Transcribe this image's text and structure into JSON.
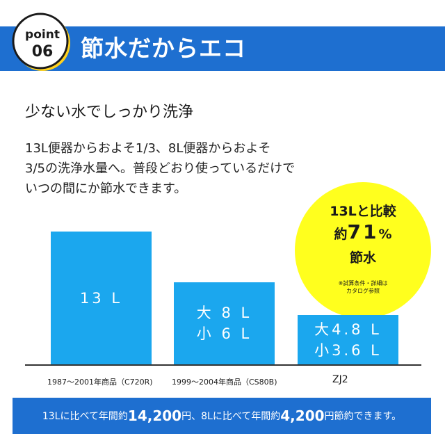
{
  "colors": {
    "header_blue": "#1e6fd0",
    "bar_blue": "#1ba7ee",
    "badge_yellow": "#ffd11e",
    "circle_yellow": "#ffff1e"
  },
  "badge": {
    "word": "point",
    "number": "06"
  },
  "header": {
    "title": "節水だからエコ"
  },
  "subtitle": "少ない水でしっかり洗浄",
  "description": [
    "13L便器からおよそ1/3、8L便器からおよそ",
    "3/5の洗浄水量へ。普段どおり使っているだけで",
    "いつの間にか節水できます。"
  ],
  "savings_badge": {
    "line1": "13Lと比較",
    "line2_prefix": "約",
    "line2_value": "71",
    "line2_unit": "%",
    "line3": "節水",
    "note_line1": "※試算条件・詳細は",
    "note_line2": "カタログ参照"
  },
  "chart_data": {
    "type": "bar",
    "categories": [
      "1987～2001年商品（C720R)",
      "1999～2004年商品（CS80B)",
      "ZJ2"
    ],
    "series": [
      {
        "name": "大",
        "values": [
          13,
          8,
          4.8
        ]
      },
      {
        "name": "小",
        "values": [
          13,
          6,
          3.6
        ]
      }
    ],
    "ylim": [
      0,
      13
    ],
    "bars": [
      {
        "lines": [
          "13 L"
        ]
      },
      {
        "lines": [
          "大 8 L",
          "小 6 L"
        ]
      },
      {
        "lines": [
          "大4.8 L",
          "小3.6 L"
        ]
      }
    ]
  },
  "footer": {
    "text1": "13Lに比べて年間約",
    "amount1": "14,200",
    "text2": "円、8Lに比べて年間約",
    "amount2": "4,200",
    "text3": "円節約できます。"
  }
}
